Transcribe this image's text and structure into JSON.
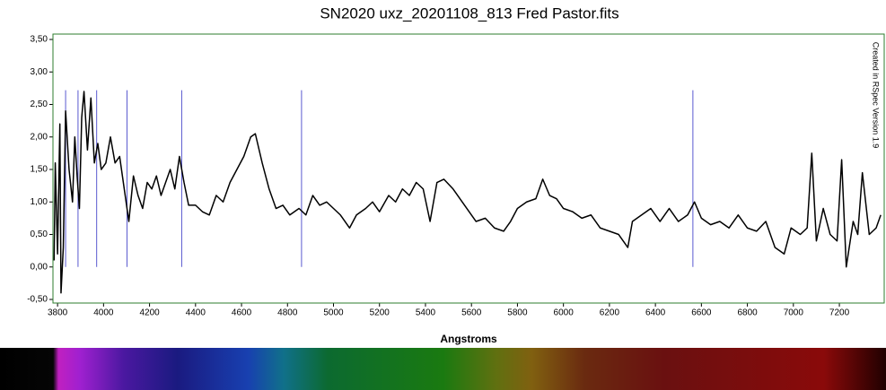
{
  "chart_data": {
    "type": "line",
    "title": "SN2020 uxz_20201108_813 Fred Pastor.fits",
    "x_label": "Angstroms",
    "annotation": "Created in RSpec Version 1.9",
    "x": [
      3785,
      3790,
      3800,
      3810,
      3815,
      3825,
      3835,
      3850,
      3865,
      3875,
      3885,
      3895,
      3905,
      3915,
      3930,
      3945,
      3960,
      3975,
      3990,
      4010,
      4030,
      4050,
      4070,
      4090,
      4110,
      4130,
      4150,
      4170,
      4190,
      4210,
      4230,
      4250,
      4270,
      4290,
      4310,
      4330,
      4350,
      4370,
      4400,
      4430,
      4460,
      4490,
      4520,
      4550,
      4580,
      4610,
      4640,
      4660,
      4690,
      4720,
      4750,
      4780,
      4810,
      4850,
      4880,
      4910,
      4940,
      4970,
      5000,
      5030,
      5070,
      5100,
      5140,
      5170,
      5200,
      5240,
      5270,
      5300,
      5330,
      5360,
      5390,
      5420,
      5450,
      5480,
      5520,
      5560,
      5590,
      5620,
      5660,
      5700,
      5740,
      5770,
      5800,
      5840,
      5880,
      5910,
      5940,
      5970,
      6000,
      6040,
      6080,
      6120,
      6160,
      6200,
      6240,
      6280,
      6300,
      6340,
      6380,
      6420,
      6460,
      6500,
      6540,
      6570,
      6600,
      6640,
      6680,
      6720,
      6760,
      6800,
      6840,
      6880,
      6920,
      6960,
      6990,
      7030,
      7060,
      7080,
      7100,
      7130,
      7160,
      7190,
      7210,
      7230,
      7260,
      7280,
      7300,
      7330,
      7360,
      7380
    ],
    "series": [
      {
        "color": "#000000",
        "values": [
          0.1,
          1.6,
          0.2,
          2.2,
          -0.4,
          0.3,
          2.4,
          1.5,
          1.0,
          2.0,
          1.4,
          0.9,
          2.3,
          2.7,
          1.8,
          2.6,
          1.6,
          1.9,
          1.5,
          1.6,
          2.0,
          1.6,
          1.7,
          1.2,
          0.7,
          1.4,
          1.1,
          0.9,
          1.3,
          1.2,
          1.4,
          1.1,
          1.3,
          1.5,
          1.2,
          1.7,
          1.3,
          0.95,
          0.95,
          0.85,
          0.8,
          1.1,
          1.0,
          1.3,
          1.5,
          1.7,
          2.0,
          2.05,
          1.6,
          1.2,
          0.9,
          0.95,
          0.8,
          0.9,
          0.8,
          1.1,
          0.95,
          1.0,
          0.9,
          0.8,
          0.6,
          0.8,
          0.9,
          1.0,
          0.85,
          1.1,
          1.0,
          1.2,
          1.1,
          1.3,
          1.2,
          0.7,
          1.3,
          1.35,
          1.2,
          1.0,
          0.85,
          0.7,
          0.75,
          0.6,
          0.55,
          0.7,
          0.9,
          1.0,
          1.05,
          1.35,
          1.1,
          1.05,
          0.9,
          0.85,
          0.75,
          0.8,
          0.6,
          0.55,
          0.5,
          0.3,
          0.7,
          0.8,
          0.9,
          0.7,
          0.9,
          0.7,
          0.8,
          1.0,
          0.75,
          0.65,
          0.7,
          0.6,
          0.8,
          0.6,
          0.55,
          0.7,
          0.3,
          0.2,
          0.6,
          0.5,
          0.6,
          1.75,
          0.4,
          0.9,
          0.5,
          0.4,
          1.65,
          0.0,
          0.7,
          0.5,
          1.45,
          0.5,
          0.6,
          0.8
        ]
      }
    ],
    "reference_lines": {
      "color": "#5a5ad0",
      "x": [
        3835,
        3889,
        3970,
        4102,
        4340,
        4861,
        6563
      ],
      "range": [
        0,
        2.72
      ]
    },
    "xlim": [
      3780,
      7395
    ],
    "ylim": [
      -0.555,
      3.583
    ],
    "xticks": [
      3800,
      4000,
      4200,
      4400,
      4600,
      4800,
      5000,
      5200,
      5400,
      5600,
      5800,
      6000,
      6200,
      6400,
      6600,
      6800,
      7000,
      7200
    ],
    "yticks": [
      {
        "value": -0.5,
        "label": "-0,50"
      },
      {
        "value": 0,
        "label": "0,00"
      },
      {
        "value": 0.5,
        "label": "0,50"
      },
      {
        "value": 1,
        "label": "1,00"
      },
      {
        "value": 1.5,
        "label": "1,50"
      },
      {
        "value": 2,
        "label": "2,00"
      },
      {
        "value": 2.5,
        "label": "2,50"
      },
      {
        "value": 3,
        "label": "3,00"
      },
      {
        "value": 3.5,
        "label": "3,50"
      }
    ],
    "frame_color": "#2e7d2e"
  }
}
